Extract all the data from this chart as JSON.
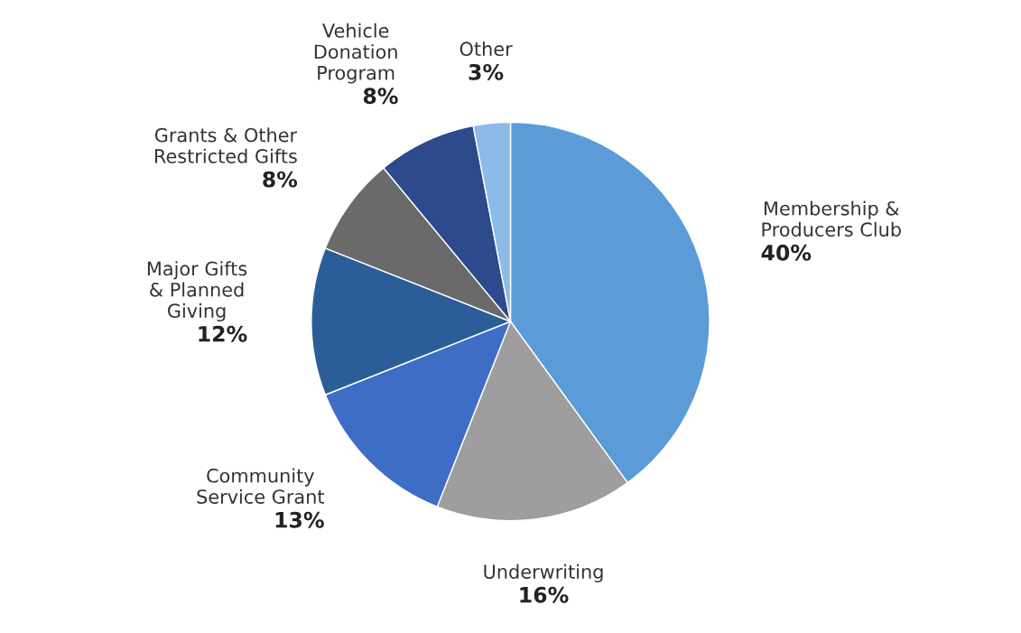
{
  "chart_data": {
    "type": "pie",
    "categories": [
      "Membership &\nProducers Club",
      "Underwriting",
      "Community\nService Grant",
      "Major Gifts\n& Planned\nGiving",
      "Grants & Other\nRestricted Gifts",
      "Vehicle\nDonation\nProgram",
      "Other"
    ],
    "values": [
      40,
      16,
      13,
      12,
      8,
      8,
      3
    ],
    "value_labels": [
      "40%",
      "16%",
      "13%",
      "12%",
      "8%",
      "8%",
      "3%"
    ],
    "colors": [
      "#5b9bd8",
      "#9e9e9e",
      "#3e6dc6",
      "#2b5e98",
      "#6a6a6a",
      "#2c4a8c",
      "#8dbbe8"
    ],
    "legend": false
  }
}
